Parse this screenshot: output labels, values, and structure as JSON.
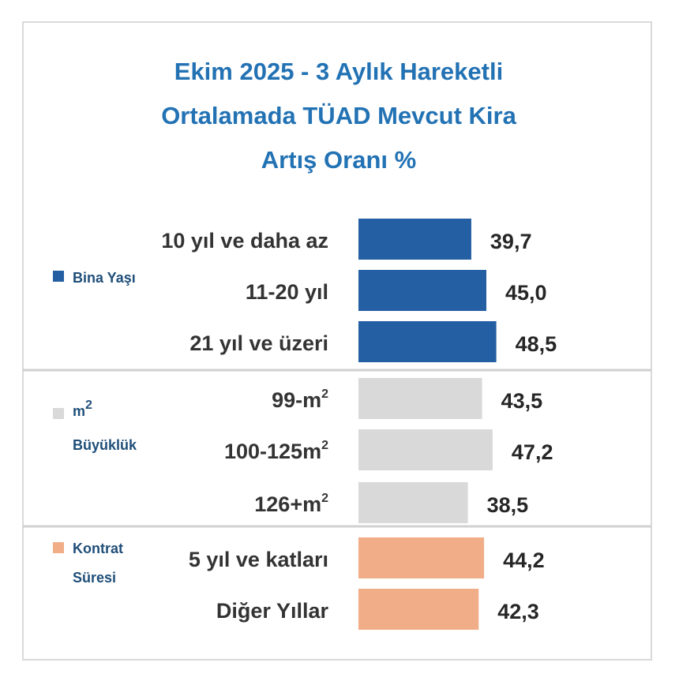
{
  "title_lines": [
    "Ekim 2025 - 3 Aylık Hareketli",
    "Ortalamada TÜAD Mevcut Kira",
    "Artış Oranı %"
  ],
  "colors": {
    "title": "#2272b4",
    "bina": "#245ea3",
    "m2": "#d9d9d9",
    "kontrat": "#f0ad88",
    "separator": "#d0d0d0"
  },
  "chart_data": {
    "type": "bar",
    "orientation": "horizontal",
    "title": "Ekim 2025 - 3 Aylık Hareketli Ortalamada TÜAD Mevcut Kira Artış Oranı %",
    "groups": [
      {
        "name": "Bina Yaşı",
        "legend_lines": [
          "Bina Yaşı"
        ],
        "color": "#245ea3",
        "categories": [
          {
            "label": "10 yıl ve daha az"
          },
          {
            "label": "11-20 yıl"
          },
          {
            "label": "21 yıl ve üzeri"
          }
        ],
        "values": [
          39.7,
          45.0,
          48.5
        ],
        "value_labels": [
          "39,7",
          "45,0",
          "48,5"
        ]
      },
      {
        "name": "m2 Büyüklük",
        "legend_lines": [
          "m",
          "Büyüklük"
        ],
        "legend_sup": "2",
        "color": "#d9d9d9",
        "categories": [
          {
            "label": "99-m",
            "sup": "2"
          },
          {
            "label": "100-125m",
            "sup": "2"
          },
          {
            "label": "126+m",
            "sup": "2"
          }
        ],
        "values": [
          43.5,
          47.2,
          38.5
        ],
        "value_labels": [
          "43,5",
          "47,2",
          "38,5"
        ]
      },
      {
        "name": "Kontrat Süresi",
        "legend_lines": [
          "Kontrat",
          "Süresi"
        ],
        "color": "#f0ad88",
        "categories": [
          {
            "label": "5 yıl ve katları"
          },
          {
            "label": "Diğer Yıllar"
          }
        ],
        "values": [
          44.2,
          42.3
        ],
        "value_labels": [
          "44,2",
          "42,3"
        ]
      }
    ],
    "grid": false,
    "legend": "left"
  }
}
